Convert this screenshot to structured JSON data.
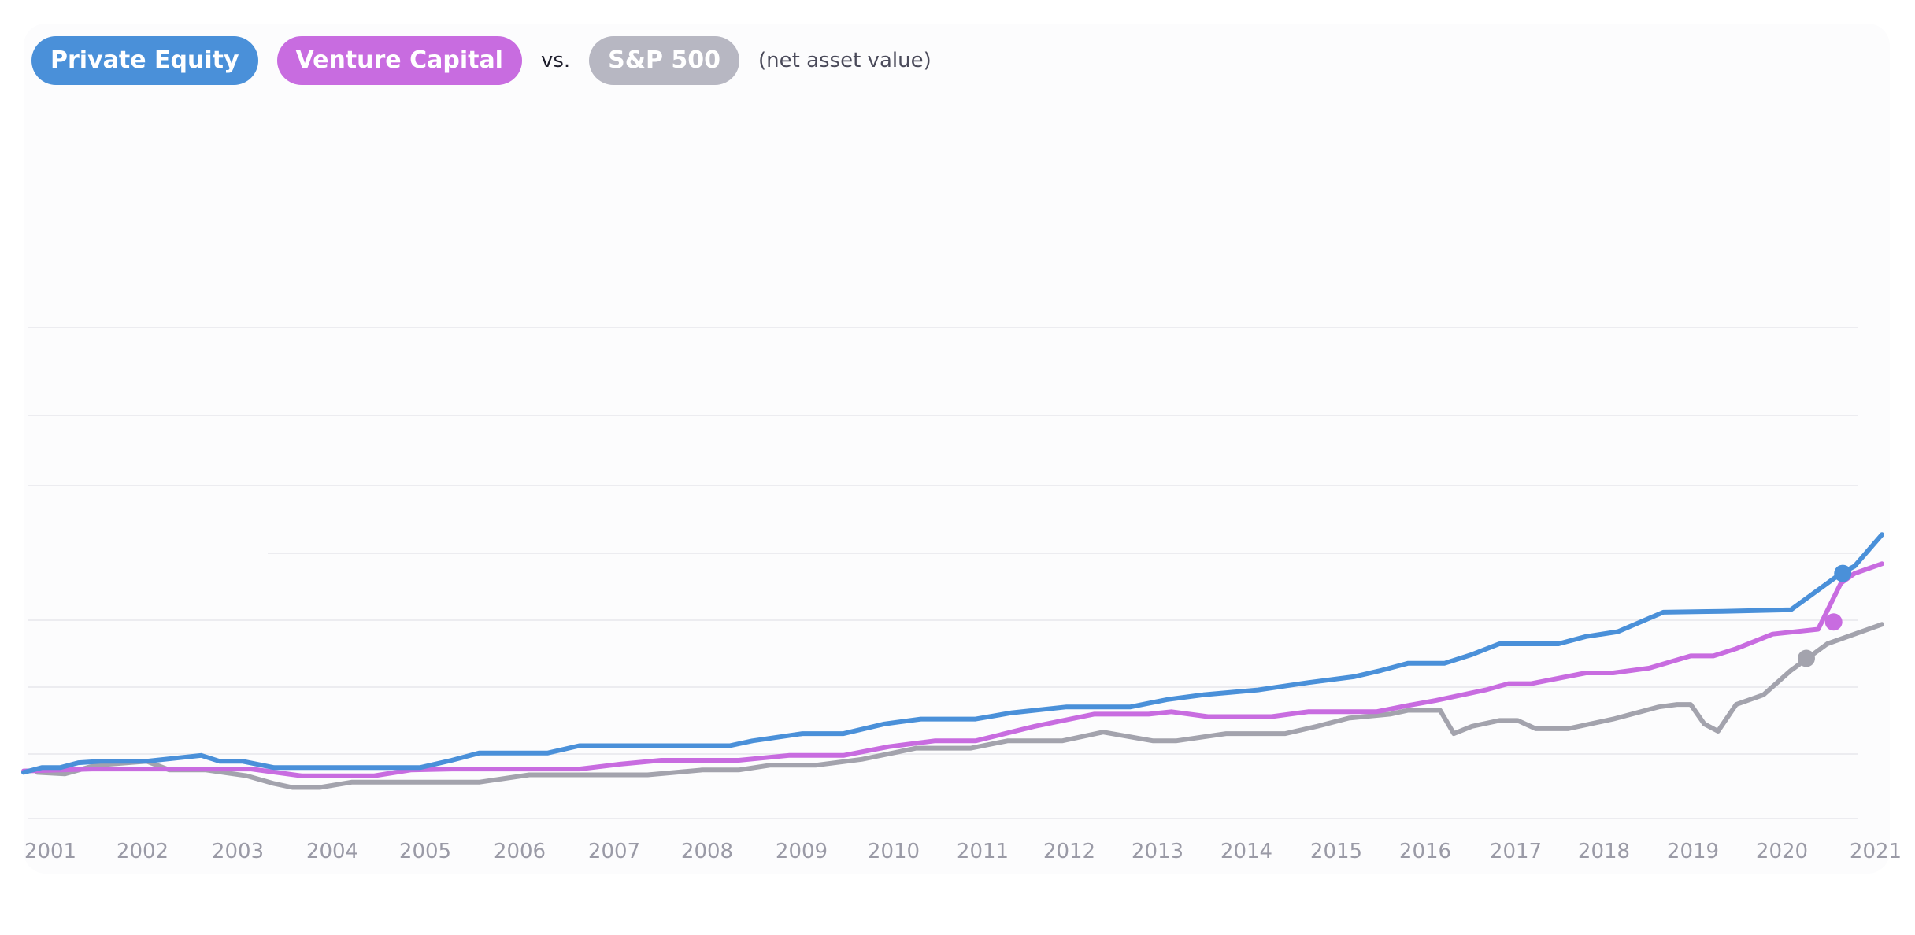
{
  "legend": {
    "items": [
      {
        "label": "Private Equity",
        "color": "#4a90d9"
      },
      {
        "label": "Venture Capital",
        "color": "#c86ce0"
      },
      {
        "label": "S&P 500",
        "color": "#b7b7c2"
      }
    ],
    "vs": "vs.",
    "note": "(net asset value)"
  },
  "colors": {
    "background": "#fcfcfd",
    "grid": "#ececf0",
    "axis_text": "#9a9aa6"
  },
  "chart_data": {
    "type": "line",
    "title": "",
    "xlabel": "",
    "ylabel": "",
    "xlim": [
      2000.75,
      2021.15
    ],
    "ylim": [
      0,
      12
    ],
    "grid": true,
    "y_ticks_visible": false,
    "x_ticks": [
      "2001",
      "2002",
      "2003",
      "2004",
      "2005",
      "2006",
      "2007",
      "2008",
      "2009",
      "2010",
      "2011",
      "2012",
      "2013",
      "2014",
      "2015",
      "2016",
      "2017",
      "2018",
      "2019",
      "2020",
      "2021"
    ],
    "series": [
      {
        "name": "Private Equity",
        "color": "#4a90d9",
        "points": [
          [
            2000.75,
            0.95
          ],
          [
            2000.95,
            1.05
          ],
          [
            2001.15,
            1.05
          ],
          [
            2001.35,
            1.15
          ],
          [
            2001.6,
            1.18
          ],
          [
            2002.1,
            1.18
          ],
          [
            2002.7,
            1.3
          ],
          [
            2002.9,
            1.18
          ],
          [
            2003.15,
            1.18
          ],
          [
            2003.5,
            1.05
          ],
          [
            2004.0,
            1.05
          ],
          [
            2004.6,
            1.05
          ],
          [
            2005.1,
            1.05
          ],
          [
            2005.45,
            1.2
          ],
          [
            2005.75,
            1.35
          ],
          [
            2006.1,
            1.35
          ],
          [
            2006.5,
            1.35
          ],
          [
            2006.85,
            1.5
          ],
          [
            2007.5,
            1.5
          ],
          [
            2008.1,
            1.5
          ],
          [
            2008.5,
            1.5
          ],
          [
            2008.75,
            1.6
          ],
          [
            2009.3,
            1.75
          ],
          [
            2009.75,
            1.75
          ],
          [
            2010.2,
            1.95
          ],
          [
            2010.6,
            2.05
          ],
          [
            2011.2,
            2.05
          ],
          [
            2011.6,
            2.18
          ],
          [
            2012.2,
            2.3
          ],
          [
            2012.9,
            2.3
          ],
          [
            2013.3,
            2.45
          ],
          [
            2013.7,
            2.55
          ],
          [
            2014.3,
            2.65
          ],
          [
            2014.85,
            2.8
          ],
          [
            2015.35,
            2.92
          ],
          [
            2015.65,
            3.05
          ],
          [
            2015.95,
            3.2
          ],
          [
            2016.35,
            3.2
          ],
          [
            2016.65,
            3.38
          ],
          [
            2016.95,
            3.6
          ],
          [
            2017.2,
            3.6
          ],
          [
            2017.6,
            3.6
          ],
          [
            2017.9,
            3.75
          ],
          [
            2018.25,
            3.85
          ],
          [
            2018.75,
            4.25
          ],
          [
            2019.4,
            4.27
          ],
          [
            2020.15,
            4.3
          ],
          [
            2020.7,
            5.05
          ],
          [
            2020.85,
            5.2
          ],
          [
            2021.15,
            5.85
          ]
        ]
      },
      {
        "name": "Venture Capital",
        "color": "#c86ce0",
        "points": [
          [
            2000.75,
            0.98
          ],
          [
            2001.5,
            1.02
          ],
          [
            2002.4,
            1.02
          ],
          [
            2003.25,
            1.02
          ],
          [
            2003.8,
            0.88
          ],
          [
            2004.6,
            0.88
          ],
          [
            2005.0,
            1.0
          ],
          [
            2005.45,
            1.02
          ],
          [
            2006.5,
            1.02
          ],
          [
            2006.85,
            1.02
          ],
          [
            2007.3,
            1.12
          ],
          [
            2007.75,
            1.2
          ],
          [
            2008.6,
            1.2
          ],
          [
            2009.15,
            1.3
          ],
          [
            2009.75,
            1.3
          ],
          [
            2010.25,
            1.48
          ],
          [
            2010.75,
            1.6
          ],
          [
            2011.2,
            1.6
          ],
          [
            2011.85,
            1.9
          ],
          [
            2012.5,
            2.15
          ],
          [
            2013.1,
            2.15
          ],
          [
            2013.35,
            2.2
          ],
          [
            2013.75,
            2.1
          ],
          [
            2014.45,
            2.1
          ],
          [
            2014.85,
            2.2
          ],
          [
            2015.6,
            2.2
          ],
          [
            2015.95,
            2.33
          ],
          [
            2016.25,
            2.43
          ],
          [
            2016.8,
            2.65
          ],
          [
            2017.05,
            2.78
          ],
          [
            2017.3,
            2.78
          ],
          [
            2017.9,
            3.0
          ],
          [
            2018.2,
            3.0
          ],
          [
            2018.6,
            3.1
          ],
          [
            2019.05,
            3.35
          ],
          [
            2019.3,
            3.35
          ],
          [
            2019.55,
            3.5
          ],
          [
            2019.95,
            3.8
          ],
          [
            2020.45,
            3.9
          ],
          [
            2020.7,
            4.85
          ],
          [
            2020.85,
            5.05
          ],
          [
            2021.15,
            5.25
          ]
        ]
      },
      {
        "name": "S&P 500",
        "color": "#b7b7c2",
        "points": [
          [
            2000.9,
            0.95
          ],
          [
            2001.2,
            0.92
          ],
          [
            2001.55,
            1.1
          ],
          [
            2002.1,
            1.18
          ],
          [
            2002.35,
            1.0
          ],
          [
            2002.75,
            1.0
          ],
          [
            2003.2,
            0.88
          ],
          [
            2003.5,
            0.72
          ],
          [
            2003.7,
            0.64
          ],
          [
            2004.0,
            0.64
          ],
          [
            2004.35,
            0.75
          ],
          [
            2004.9,
            0.75
          ],
          [
            2005.3,
            0.75
          ],
          [
            2005.75,
            0.75
          ],
          [
            2006.3,
            0.9
          ],
          [
            2006.75,
            0.9
          ],
          [
            2007.15,
            0.9
          ],
          [
            2007.6,
            0.9
          ],
          [
            2008.2,
            1.0
          ],
          [
            2008.6,
            1.0
          ],
          [
            2008.95,
            1.1
          ],
          [
            2009.45,
            1.1
          ],
          [
            2009.95,
            1.22
          ],
          [
            2010.55,
            1.45
          ],
          [
            2011.15,
            1.45
          ],
          [
            2011.55,
            1.6
          ],
          [
            2012.15,
            1.6
          ],
          [
            2012.6,
            1.78
          ],
          [
            2013.15,
            1.6
          ],
          [
            2013.4,
            1.6
          ],
          [
            2013.95,
            1.75
          ],
          [
            2014.6,
            1.75
          ],
          [
            2014.95,
            1.9
          ],
          [
            2015.3,
            2.07
          ],
          [
            2015.75,
            2.15
          ],
          [
            2015.95,
            2.23
          ],
          [
            2016.3,
            2.23
          ],
          [
            2016.45,
            1.75
          ],
          [
            2016.65,
            1.9
          ],
          [
            2016.95,
            2.02
          ],
          [
            2017.15,
            2.02
          ],
          [
            2017.35,
            1.85
          ],
          [
            2017.7,
            1.85
          ],
          [
            2018.2,
            2.05
          ],
          [
            2018.7,
            2.3
          ],
          [
            2018.9,
            2.35
          ],
          [
            2019.05,
            2.35
          ],
          [
            2019.2,
            1.95
          ],
          [
            2019.35,
            1.8
          ],
          [
            2019.55,
            2.35
          ],
          [
            2019.85,
            2.55
          ],
          [
            2020.15,
            3.05
          ],
          [
            2020.55,
            3.6
          ],
          [
            2021.15,
            4.0
          ]
        ]
      }
    ],
    "markers": [
      {
        "series": "Private Equity",
        "x": 2020.72,
        "y": 5.05
      },
      {
        "series": "Venture Capital",
        "x": 2020.62,
        "y": 4.05
      },
      {
        "series": "S&P 500",
        "x": 2020.32,
        "y": 3.3
      }
    ]
  }
}
